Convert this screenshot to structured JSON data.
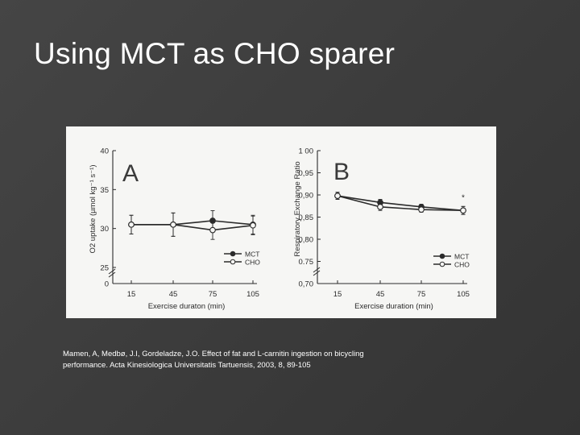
{
  "slide": {
    "title": "Using MCT as CHO sparer",
    "caption_line1": "Mamen, A, Medbø, J.I, Gordeladze, J.O. Effect of fat and L-carnitin ingestion on bicycling",
    "caption_line2": "performance. Acta Kinesiologica Universitatis Tartuensis, 2003, 8, 89-105"
  },
  "chart_data": [
    {
      "type": "line",
      "panel_label": "A",
      "xlabel": "Exercise duraton (min)",
      "ylabel": "O2 uptake (µmol kg⁻¹ s⁻¹)",
      "x": [
        15,
        45,
        75,
        105
      ],
      "x_tick_labels": [
        "15",
        "45",
        "75",
        "105"
      ],
      "ylim": [
        0,
        40
      ],
      "y_ticks": [
        0,
        25,
        30,
        35,
        40
      ],
      "y_tick_labels": [
        "0",
        "25",
        "30",
        "35",
        "40"
      ],
      "axis_break": true,
      "legend_position": "bottom-right",
      "series": [
        {
          "name": "MCT",
          "marker": "filled-circle",
          "values": [
            30.5,
            30.5,
            31.0,
            30.5
          ],
          "error": [
            1.2,
            1.5,
            1.3,
            1.2
          ]
        },
        {
          "name": "CHO",
          "marker": "open-circle",
          "values": [
            30.5,
            30.5,
            29.8,
            30.4
          ],
          "error": [
            1.2,
            1.5,
            1.2,
            1.2
          ]
        }
      ]
    },
    {
      "type": "line",
      "panel_label": "B",
      "xlabel": "Exercise duration (min)",
      "ylabel": "Respiratory Exchange Ratio",
      "x": [
        15,
        45,
        75,
        105
      ],
      "x_tick_labels": [
        "15",
        "45",
        "75",
        "105"
      ],
      "ylim": [
        0.7,
        1.0
      ],
      "y_ticks": [
        0.7,
        0.75,
        0.8,
        0.85,
        0.9,
        0.95,
        1.0
      ],
      "y_tick_labels": [
        "0,70",
        "0.75",
        "0,80",
        "0,85",
        "0,90",
        "0,95",
        "1 00"
      ],
      "axis_break": true,
      "legend_position": "bottom-right",
      "annotations": [
        {
          "x": 105,
          "text": "*"
        }
      ],
      "series": [
        {
          "name": "MCT",
          "marker": "filled-circle",
          "values": [
            0.898,
            0.883,
            0.873,
            0.865
          ],
          "error": [
            0.008,
            0.007,
            0.006,
            0.009
          ]
        },
        {
          "name": "CHO",
          "marker": "open-circle",
          "values": [
            0.898,
            0.873,
            0.867,
            0.865
          ],
          "error": [
            0.008,
            0.008,
            0.006,
            0.009
          ]
        }
      ]
    }
  ]
}
